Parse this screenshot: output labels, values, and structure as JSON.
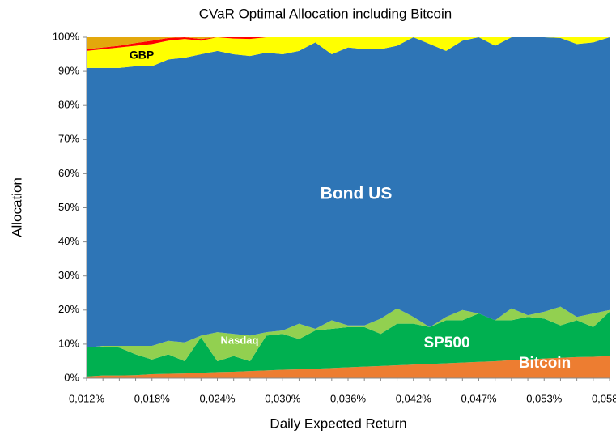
{
  "chart_data": {
    "type": "stacked-area",
    "title": "CVaR Optimal Allocation including Bitcoin",
    "x_label": "Daily Expected Return",
    "y_label": "Allocation",
    "categories": [
      "0,012%",
      null,
      null,
      null,
      "0,018%",
      null,
      null,
      null,
      "0,024%",
      null,
      null,
      null,
      "0,030%",
      null,
      null,
      null,
      "0,036%",
      null,
      null,
      null,
      "0,042%",
      null,
      null,
      null,
      "0,047%",
      null,
      null,
      null,
      "0,053%",
      null,
      null,
      null,
      "0,058%"
    ],
    "ylim": [
      0,
      100
    ],
    "yticks": [
      {
        "value": 0,
        "label": "0%"
      },
      {
        "value": 10,
        "label": "10%"
      },
      {
        "value": 20,
        "label": "20%"
      },
      {
        "value": 30,
        "label": "30%"
      },
      {
        "value": 40,
        "label": "40%"
      },
      {
        "value": 50,
        "label": "50%"
      },
      {
        "value": 60,
        "label": "60%"
      },
      {
        "value": 70,
        "label": "70%"
      },
      {
        "value": 80,
        "label": "80%"
      },
      {
        "value": 90,
        "label": "90%"
      },
      {
        "value": 100,
        "label": "100%"
      }
    ],
    "series": [
      {
        "name": "Bitcoin",
        "color": "#ed7d31",
        "values": [
          0.5,
          0.8,
          0.8,
          0.9,
          1.2,
          1.3,
          1.4,
          1.6,
          1.8,
          1.9,
          2.1,
          2.3,
          2.5,
          2.6,
          2.8,
          3.0,
          3.2,
          3.4,
          3.6,
          3.8,
          4.0,
          4.2,
          4.4,
          4.6,
          4.8,
          5.0,
          5.3,
          5.5,
          5.8,
          6.0,
          6.2,
          6.3,
          6.5
        ]
      },
      {
        "name": "SP500",
        "color": "#00b050",
        "values": [
          8.5,
          8.5,
          8.2,
          6.1,
          4.3,
          5.7,
          3.6,
          10.4,
          3.2,
          4.6,
          2.9,
          10.2,
          10.5,
          8.9,
          11.2,
          11.5,
          11.8,
          11.6,
          9.4,
          12.2,
          12,
          10.8,
          12.6,
          12.4,
          14.2,
          12,
          11.7,
          12.5,
          11.7,
          9.5,
          10.8,
          8.7,
          13
        ]
      },
      {
        "name": "Nasdaq",
        "color": "#92d050",
        "values": [
          0,
          0.2,
          0.5,
          2.5,
          4,
          4,
          5.5,
          0.5,
          8.5,
          6.5,
          7.5,
          1,
          1,
          4.5,
          0.5,
          2.5,
          0.5,
          0.5,
          4.5,
          4.5,
          2,
          0,
          1,
          3,
          0,
          0,
          3.5,
          0.5,
          2,
          5.5,
          1,
          4,
          0.5
        ]
      },
      {
        "name": "Bond US",
        "color": "#2e75b6",
        "values": [
          82,
          81.5,
          81.5,
          82,
          82,
          82.5,
          83.5,
          82.5,
          82.5,
          82,
          82,
          82,
          81,
          80,
          84,
          78,
          81.5,
          81,
          79,
          77,
          82,
          83,
          78,
          79,
          81,
          80.5,
          79.5,
          81.5,
          80.5,
          78.8,
          80,
          79.5,
          80
        ]
      },
      {
        "name": "GBP",
        "color": "#ffff00",
        "values": [
          5,
          5.5,
          6,
          6,
          6.5,
          5.5,
          5.5,
          4,
          4,
          4.6,
          5,
          4.5,
          5,
          4,
          1.5,
          5,
          3,
          3.5,
          3.5,
          2.5,
          0,
          2,
          4,
          1,
          0,
          2.5,
          0,
          0,
          0,
          0.2,
          2,
          1.5,
          0
        ]
      },
      {
        "color": "#ff0000",
        "values": [
          0.5,
          0.5,
          0.5,
          0.8,
          1,
          0.8,
          0.5,
          0.5,
          0,
          0.4,
          0.5,
          0,
          0,
          0,
          0,
          0,
          0,
          0,
          0,
          0,
          0,
          0,
          0,
          0,
          0,
          0,
          0,
          0,
          0,
          0,
          0,
          0,
          0
        ]
      },
      {
        "color": "#e3a80c",
        "values": [
          3.5,
          3,
          2.5,
          1.7,
          1,
          0.2,
          0,
          0.5,
          0,
          0,
          0,
          0,
          0,
          0,
          0,
          0,
          0,
          0,
          0,
          0,
          0,
          0,
          0,
          0,
          0,
          0,
          0,
          0,
          0,
          0,
          0,
          0,
          0
        ]
      }
    ]
  }
}
